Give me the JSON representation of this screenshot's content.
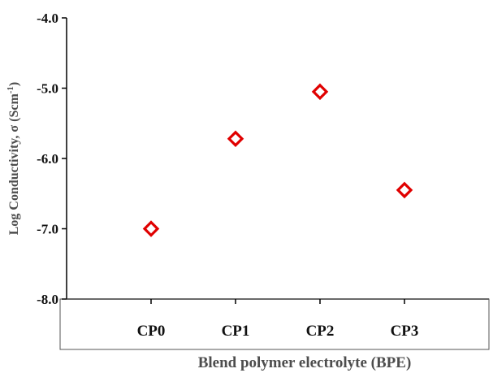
{
  "chart_data": {
    "type": "scatter",
    "categories": [
      "CP0",
      "CP1",
      "CP2",
      "CP3"
    ],
    "values": [
      -7.0,
      -5.72,
      -5.05,
      -6.45
    ],
    "xlabel": "Blend polymer electrolyte (BPE)",
    "ylabel_main": "Log Conductivity, σ (Scm",
    "ylabel_sup": "-1",
    "ylabel_close": ")",
    "ylim": [
      -8.0,
      -4.0
    ],
    "yticks": [
      "-8.0",
      "-7.0",
      "-6.0",
      "-5.0",
      "-4.0"
    ],
    "marker": "diamond-open",
    "marker_color": "#e00000",
    "grid": false,
    "legend": "none"
  }
}
